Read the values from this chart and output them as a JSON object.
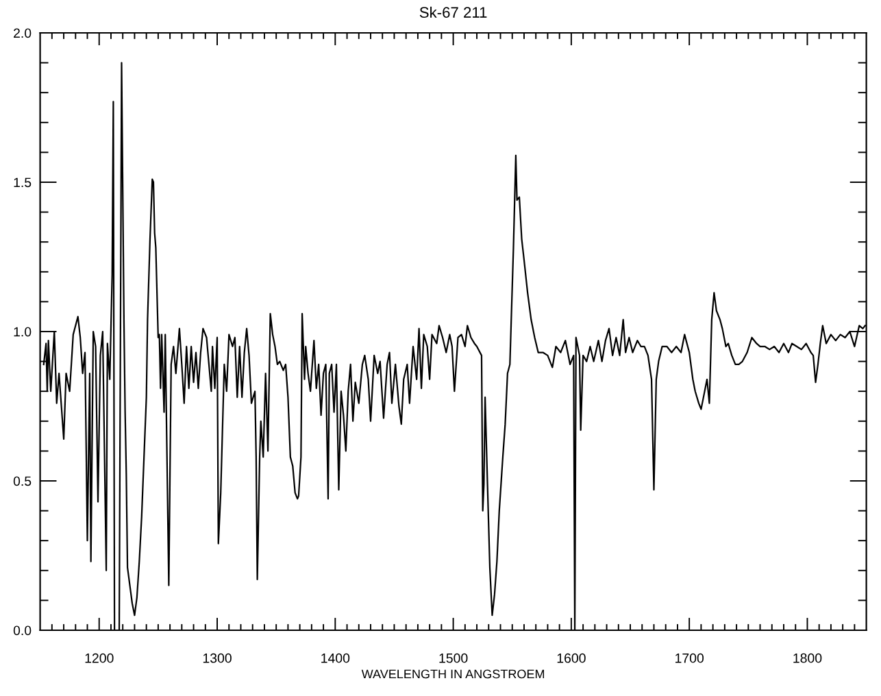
{
  "chart_data": {
    "type": "line",
    "title": "Sk-67 211",
    "xlabel": "WAVELENGTH IN ANGSTROEM",
    "color": "#000000",
    "x": [
      1153,
      1155,
      1156,
      1157,
      1159,
      1162,
      1164,
      1166,
      1170,
      1172,
      1175,
      1178,
      1182,
      1184,
      1186,
      1188,
      1190,
      1192,
      1193,
      1195,
      1197,
      1199,
      1201,
      1203,
      1206,
      1207,
      1209,
      1211,
      1212,
      1213,
      1217,
      1219,
      1221,
      1222,
      1223,
      1224,
      1226,
      1228,
      1230,
      1232,
      1234,
      1236,
      1238,
      1240,
      1241,
      1243,
      1245,
      1246,
      1247,
      1248,
      1250,
      1251,
      1252,
      1253,
      1255,
      1256,
      1259,
      1261,
      1263,
      1265,
      1268,
      1270,
      1272,
      1274,
      1276,
      1278,
      1280,
      1282,
      1284,
      1286,
      1288,
      1291,
      1293,
      1295,
      1296,
      1298,
      1300,
      1301,
      1303,
      1306,
      1308,
      1310,
      1313,
      1315,
      1317,
      1319,
      1321,
      1323,
      1325,
      1327,
      1329,
      1332,
      1333,
      1334,
      1336,
      1337,
      1339,
      1341,
      1343,
      1345,
      1347,
      1349,
      1351,
      1353,
      1356,
      1358,
      1360,
      1362,
      1364,
      1366,
      1368,
      1369,
      1371,
      1372,
      1374,
      1375,
      1377,
      1379,
      1382,
      1384,
      1386,
      1388,
      1390,
      1392,
      1394,
      1395,
      1397,
      1399,
      1401,
      1403,
      1405,
      1407,
      1409,
      1411,
      1413,
      1415,
      1417,
      1420,
      1423,
      1425,
      1428,
      1430,
      1433,
      1436,
      1438,
      1441,
      1444,
      1446,
      1448,
      1451,
      1454,
      1456,
      1458,
      1461,
      1463,
      1466,
      1469,
      1471,
      1473,
      1475,
      1478,
      1480,
      1482,
      1486,
      1488,
      1491,
      1494,
      1497,
      1499,
      1501,
      1504,
      1507,
      1510,
      1512,
      1515,
      1518,
      1520,
      1524,
      1525,
      1526,
      1527,
      1529,
      1531,
      1533,
      1535,
      1537,
      1539,
      1542,
      1544,
      1546,
      1548,
      1549,
      1551,
      1553,
      1554,
      1556,
      1558,
      1560,
      1563,
      1566,
      1569,
      1572,
      1576,
      1580,
      1584,
      1587,
      1591,
      1595,
      1599,
      1602,
      1603,
      1604,
      1607,
      1608,
      1610,
      1613,
      1616,
      1619,
      1623,
      1626,
      1629,
      1632,
      1635,
      1638,
      1641,
      1644,
      1646,
      1649,
      1652,
      1656,
      1659,
      1662,
      1665,
      1668,
      1670,
      1672,
      1674,
      1677,
      1681,
      1685,
      1689,
      1693,
      1696,
      1700,
      1703,
      1705,
      1708,
      1710,
      1713,
      1715,
      1717,
      1719,
      1721,
      1723,
      1726,
      1728,
      1731,
      1733,
      1736,
      1739,
      1742,
      1745,
      1749,
      1753,
      1757,
      1760,
      1764,
      1768,
      1772,
      1776,
      1780,
      1784,
      1787,
      1791,
      1795,
      1799,
      1803,
      1805,
      1807,
      1809,
      1811,
      1813,
      1816,
      1820,
      1824,
      1828,
      1832,
      1836,
      1840,
      1844,
      1847,
      1849
    ],
    "values": [
      0.89,
      0.96,
      0.8,
      0.97,
      0.8,
      1.0,
      0.76,
      0.86,
      0.64,
      0.86,
      0.8,
      0.99,
      1.05,
      0.98,
      0.86,
      0.93,
      0.3,
      0.86,
      0.23,
      1.0,
      0.95,
      0.43,
      0.92,
      1.0,
      0.2,
      0.96,
      0.84,
      1.19,
      1.77,
      0,
      0,
      1.9,
      1.04,
      0.73,
      0.52,
      0.21,
      0.15,
      0.09,
      0.05,
      0.11,
      0.23,
      0.38,
      0.58,
      0.78,
      1.04,
      1.3,
      1.51,
      1.5,
      1.33,
      1.28,
      0.98,
      0.99,
      0.81,
      0.99,
      0.73,
      0.99,
      0.15,
      0.89,
      0.95,
      0.86,
      1.01,
      0.89,
      0.76,
      0.95,
      0.81,
      0.95,
      0.83,
      0.93,
      0.81,
      0.93,
      1.01,
      0.98,
      0.89,
      0.8,
      0.95,
      0.81,
      0.98,
      0.29,
      0.46,
      0.89,
      0.8,
      0.99,
      0.95,
      0.98,
      0.78,
      0.95,
      0.78,
      0.93,
      1.01,
      0.92,
      0.76,
      0.8,
      0.58,
      0.17,
      0.58,
      0.7,
      0.58,
      0.86,
      0.6,
      1.06,
      0.99,
      0.95,
      0.89,
      0.9,
      0.87,
      0.89,
      0.78,
      0.58,
      0.55,
      0.46,
      0.44,
      0.45,
      0.58,
      1.06,
      0.84,
      0.95,
      0.86,
      0.8,
      0.97,
      0.81,
      0.89,
      0.72,
      0.86,
      0.89,
      0.44,
      0.86,
      0.89,
      0.73,
      0.89,
      0.47,
      0.8,
      0.72,
      0.6,
      0.8,
      0.89,
      0.7,
      0.83,
      0.76,
      0.89,
      0.92,
      0.84,
      0.7,
      0.92,
      0.86,
      0.9,
      0.71,
      0.89,
      0.93,
      0.76,
      0.89,
      0.75,
      0.69,
      0.84,
      0.89,
      0.76,
      0.95,
      0.84,
      1.01,
      0.81,
      0.99,
      0.95,
      0.84,
      0.99,
      0.96,
      1.02,
      0.98,
      0.93,
      0.99,
      0.95,
      0.8,
      0.98,
      0.99,
      0.95,
      1.02,
      0.98,
      0.96,
      0.95,
      0.92,
      0.4,
      0.49,
      0.78,
      0.49,
      0.21,
      0.05,
      0.12,
      0.23,
      0.4,
      0.58,
      0.69,
      0.86,
      0.89,
      1.02,
      1.28,
      1.59,
      1.44,
      1.45,
      1.31,
      1.24,
      1.13,
      1.04,
      0.98,
      0.93,
      0.93,
      0.92,
      0.88,
      0.95,
      0.93,
      0.97,
      0.89,
      0.92,
      0,
      0.98,
      0.92,
      0.67,
      0.92,
      0.9,
      0.95,
      0.9,
      0.97,
      0.9,
      0.97,
      1.01,
      0.92,
      0.98,
      0.92,
      1.04,
      0.93,
      0.98,
      0.93,
      0.97,
      0.95,
      0.95,
      0.92,
      0.84,
      0.47,
      0.84,
      0.9,
      0.95,
      0.95,
      0.93,
      0.95,
      0.93,
      0.99,
      0.93,
      0.84,
      0.8,
      0.76,
      0.74,
      0.8,
      0.84,
      0.76,
      1.04,
      1.13,
      1.07,
      1.04,
      1.01,
      0.95,
      0.96,
      0.92,
      0.89,
      0.89,
      0.9,
      0.93,
      0.98,
      0.96,
      0.95,
      0.95,
      0.94,
      0.95,
      0.93,
      0.96,
      0.93,
      0.96,
      0.95,
      0.94,
      0.96,
      0.93,
      0.92,
      0.83,
      0.89,
      0.96,
      1.02,
      0.96,
      0.99,
      0.97,
      0.99,
      0.98,
      1.0,
      0.95,
      1.02,
      1.01,
      1.02
    ],
    "xlim": [
      1150,
      1850
    ],
    "ylim": [
      0,
      2
    ],
    "xticks": [
      {
        "value": 1160,
        "label": null
      },
      {
        "value": 1170,
        "label": null
      },
      {
        "value": 1180,
        "label": null
      },
      {
        "value": 1190,
        "label": null
      },
      1200,
      {
        "value": 1210,
        "label": null
      },
      {
        "value": 1220,
        "label": null
      },
      {
        "value": 1230,
        "label": null
      },
      {
        "value": 1240,
        "label": null
      },
      {
        "value": 1250,
        "label": null
      },
      {
        "value": 1260,
        "label": null
      },
      {
        "value": 1270,
        "label": null
      },
      {
        "value": 1280,
        "label": null
      },
      {
        "value": 1290,
        "label": null
      },
      1300,
      {
        "value": 1310,
        "label": null
      },
      {
        "value": 1320,
        "label": null
      },
      {
        "value": 1330,
        "label": null
      },
      {
        "value": 1340,
        "label": null
      },
      {
        "value": 1350,
        "label": null
      },
      {
        "value": 1360,
        "label": null
      },
      {
        "value": 1370,
        "label": null
      },
      {
        "value": 1380,
        "label": null
      },
      {
        "value": 1390,
        "label": null
      },
      1400,
      {
        "value": 1410,
        "label": null
      },
      {
        "value": 1420,
        "label": null
      },
      {
        "value": 1430,
        "label": null
      },
      {
        "value": 1440,
        "label": null
      },
      {
        "value": 1450,
        "label": null
      },
      {
        "value": 1460,
        "label": null
      },
      {
        "value": 1470,
        "label": null
      },
      {
        "value": 1480,
        "label": null
      },
      {
        "value": 1490,
        "label": null
      },
      1500,
      {
        "value": 1510,
        "label": null
      },
      {
        "value": 1520,
        "label": null
      },
      {
        "value": 1530,
        "label": null
      },
      {
        "value": 1540,
        "label": null
      },
      {
        "value": 1550,
        "label": null
      },
      {
        "value": 1560,
        "label": null
      },
      {
        "value": 1570,
        "label": null
      },
      {
        "value": 1580,
        "label": null
      },
      {
        "value": 1590,
        "label": null
      },
      1600,
      {
        "value": 1610,
        "label": null
      },
      {
        "value": 1620,
        "label": null
      },
      {
        "value": 1630,
        "label": null
      },
      {
        "value": 1640,
        "label": null
      },
      {
        "value": 1650,
        "label": null
      },
      {
        "value": 1660,
        "label": null
      },
      {
        "value": 1670,
        "label": null
      },
      {
        "value": 1680,
        "label": null
      },
      {
        "value": 1690,
        "label": null
      },
      1700,
      {
        "value": 1710,
        "label": null
      },
      {
        "value": 1720,
        "label": null
      },
      {
        "value": 1730,
        "label": null
      },
      {
        "value": 1740,
        "label": null
      },
      {
        "value": 1750,
        "label": null
      },
      {
        "value": 1760,
        "label": null
      },
      {
        "value": 1770,
        "label": null
      },
      {
        "value": 1780,
        "label": null
      },
      {
        "value": 1790,
        "label": null
      },
      1800,
      {
        "value": 1810,
        "label": null
      },
      {
        "value": 1820,
        "label": null
      },
      {
        "value": 1830,
        "label": null
      },
      {
        "value": 1840,
        "label": null
      }
    ],
    "yticks": [
      {
        "value": 0,
        "label": "0.0"
      },
      {
        "value": 0.1,
        "label": null
      },
      {
        "value": 0.2,
        "label": null
      },
      {
        "value": 0.3,
        "label": null
      },
      {
        "value": 0.4,
        "label": null
      },
      {
        "value": 0.5,
        "label": "0.5"
      },
      {
        "value": 0.6,
        "label": null
      },
      {
        "value": 0.7,
        "label": null
      },
      {
        "value": 0.8,
        "label": null
      },
      {
        "value": 0.9,
        "label": null
      },
      {
        "value": 1,
        "label": "1.0"
      },
      {
        "value": 1.1,
        "label": null
      },
      {
        "value": 1.2,
        "label": null
      },
      {
        "value": 1.3,
        "label": null
      },
      {
        "value": 1.4,
        "label": null
      },
      {
        "value": 1.5,
        "label": "1.5"
      },
      {
        "value": 1.6,
        "label": null
      },
      {
        "value": 1.7,
        "label": null
      },
      {
        "value": 1.8,
        "label": null
      },
      {
        "value": 1.9,
        "label": null
      },
      {
        "value": 2,
        "label": "2.0"
      }
    ]
  }
}
